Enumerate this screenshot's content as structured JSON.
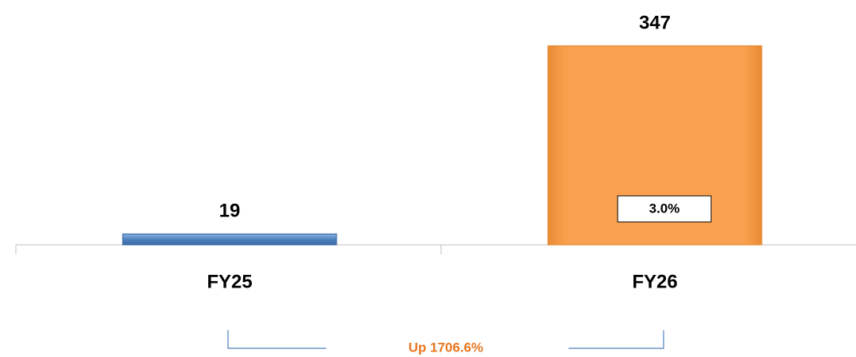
{
  "chart_data": {
    "type": "bar",
    "categories": [
      "FY25",
      "FY26"
    ],
    "values": [
      19,
      347
    ],
    "colors": [
      "#4f81bd",
      "#f9a04e"
    ],
    "annotations": [
      "3.0%",
      "Up 1706.6%"
    ]
  }
}
